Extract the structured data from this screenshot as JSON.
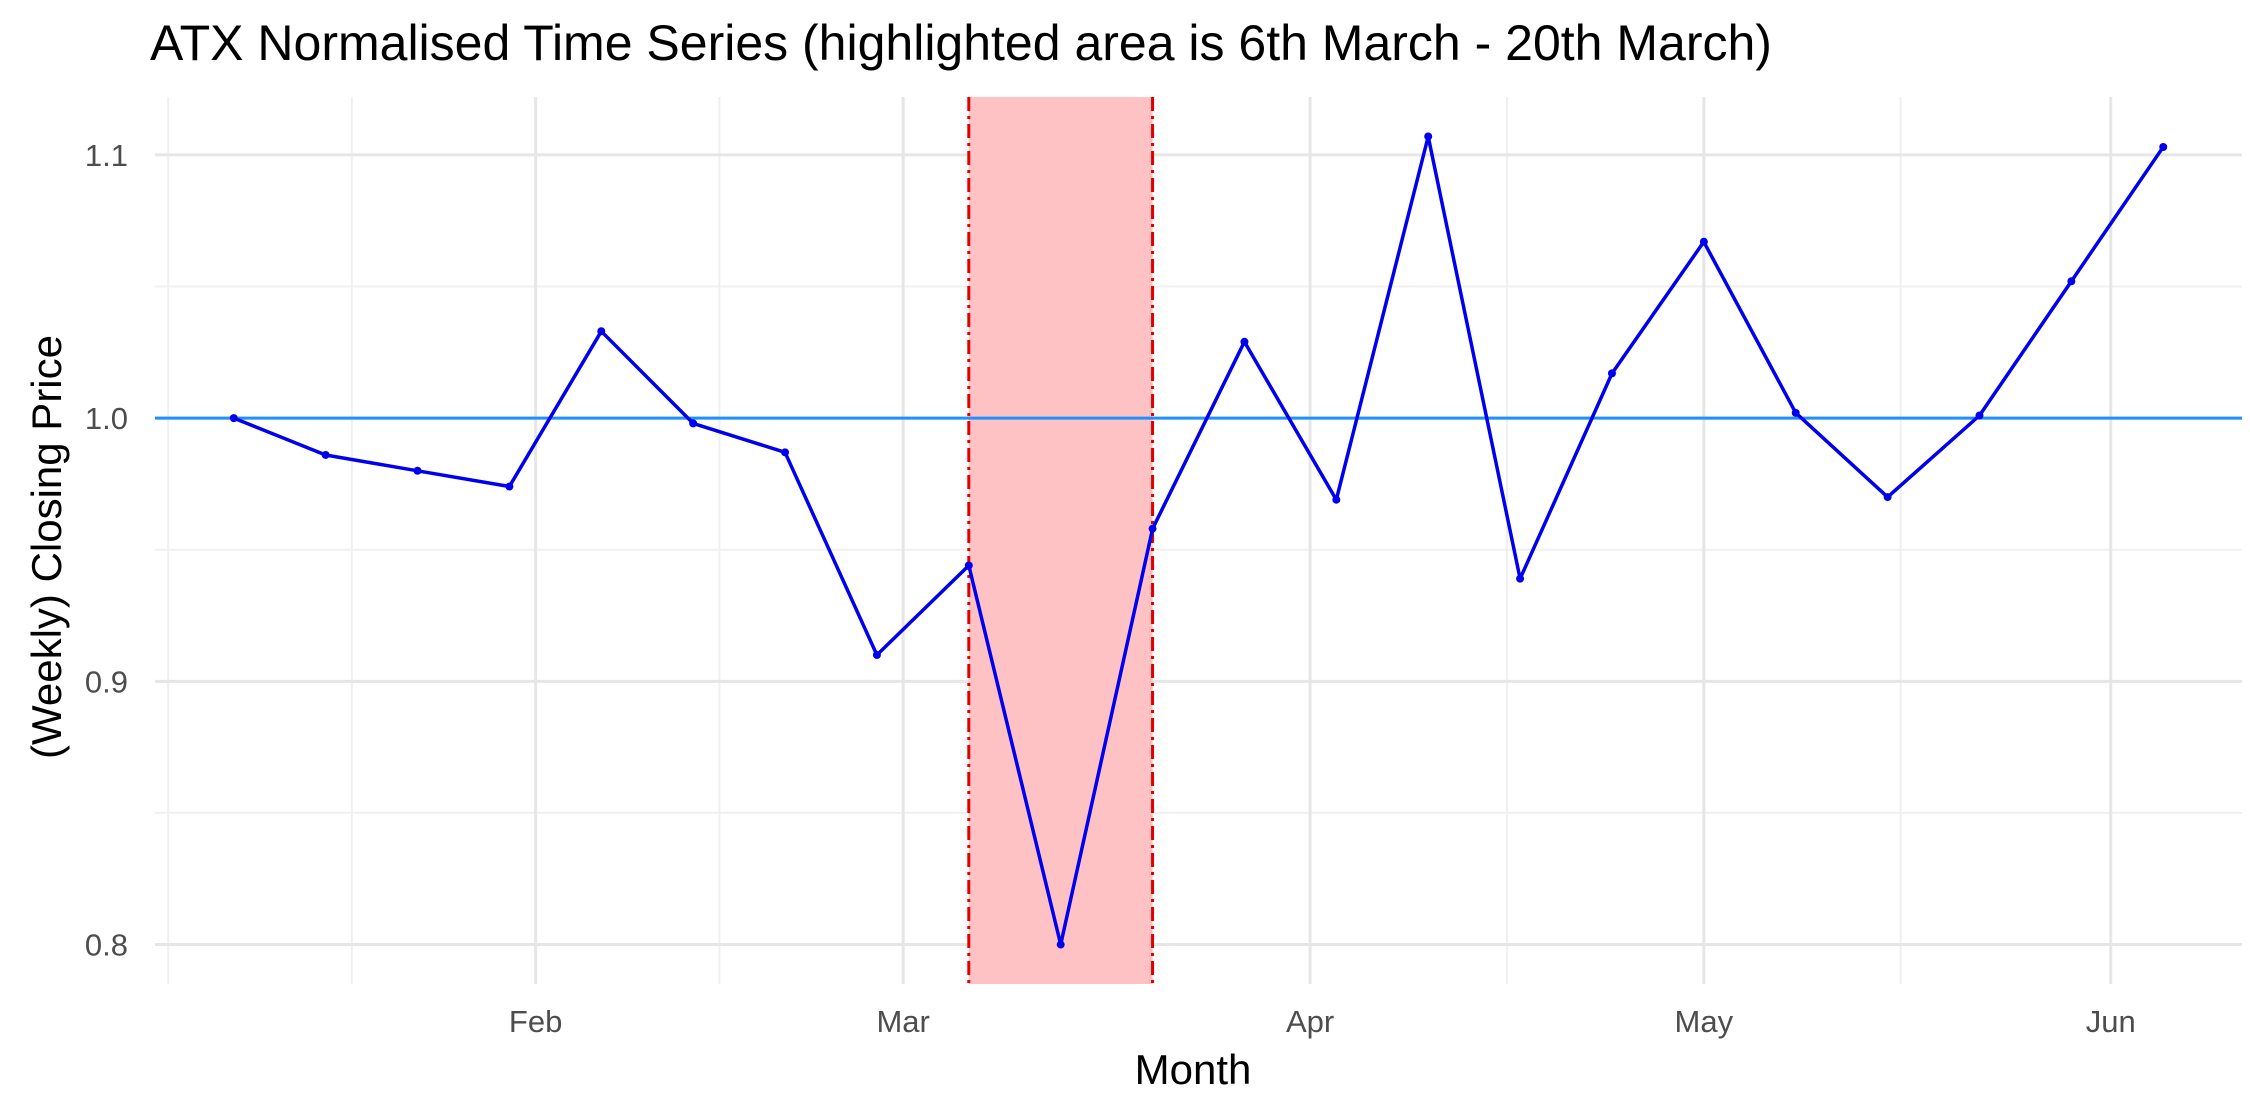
{
  "chart_data": {
    "type": "line",
    "title": "ATX Normalised Time Series (highlighted area is 6th March - 20th March)",
    "xlabel": "Month",
    "ylabel": "(Weekly) Closing Price",
    "x_ticks": [
      {
        "date": "2023-02-01",
        "label": "Feb"
      },
      {
        "date": "2023-03-01",
        "label": "Mar"
      },
      {
        "date": "2023-04-01",
        "label": "Apr"
      },
      {
        "date": "2023-05-01",
        "label": "May"
      },
      {
        "date": "2023-06-01",
        "label": "Jun"
      }
    ],
    "xlim": [
      "2023-01-03",
      "2023-06-11"
    ],
    "y_ticks": [
      0.8,
      0.9,
      1.0,
      1.1
    ],
    "ylim": [
      0.785,
      1.122
    ],
    "grid": true,
    "series": [
      {
        "color": "#0000ee",
        "points": [
          {
            "x": "2023-01-09",
            "y": 1.0
          },
          {
            "x": "2023-01-16",
            "y": 0.986
          },
          {
            "x": "2023-01-23",
            "y": 0.98
          },
          {
            "x": "2023-01-30",
            "y": 0.974
          },
          {
            "x": "2023-02-06",
            "y": 1.033
          },
          {
            "x": "2023-02-13",
            "y": 0.998
          },
          {
            "x": "2023-02-20",
            "y": 0.987
          },
          {
            "x": "2023-02-27",
            "y": 0.91
          },
          {
            "x": "2023-03-06",
            "y": 0.944
          },
          {
            "x": "2023-03-13",
            "y": 0.8
          },
          {
            "x": "2023-03-20",
            "y": 0.958
          },
          {
            "x": "2023-03-27",
            "y": 1.029
          },
          {
            "x": "2023-04-03",
            "y": 0.969
          },
          {
            "x": "2023-04-10",
            "y": 1.107
          },
          {
            "x": "2023-04-17",
            "y": 0.939
          },
          {
            "x": "2023-04-24",
            "y": 1.017
          },
          {
            "x": "2023-05-01",
            "y": 1.067
          },
          {
            "x": "2023-05-08",
            "y": 1.002
          },
          {
            "x": "2023-05-15",
            "y": 0.97
          },
          {
            "x": "2023-05-22",
            "y": 1.001
          },
          {
            "x": "2023-05-29",
            "y": 1.052
          },
          {
            "x": "2023-06-05",
            "y": 1.103
          }
        ]
      }
    ],
    "reference_line": {
      "y": 1.0,
      "color": "#1e90ff"
    },
    "highlight": {
      "from": "2023-03-06",
      "to": "2023-03-20",
      "fill": "#ffc2c4",
      "border_color": "#e00000"
    }
  }
}
